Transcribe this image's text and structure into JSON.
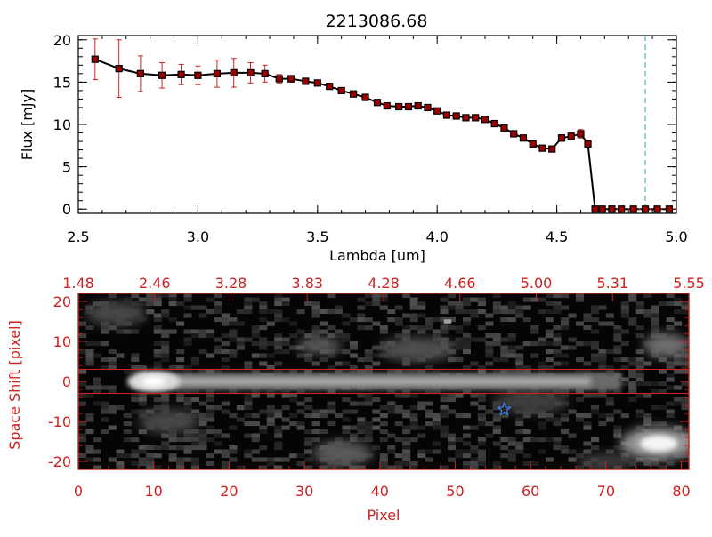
{
  "chart_data": [
    {
      "type": "line",
      "title": "2213086.68",
      "xlabel": "Lambda [um]",
      "ylabel": "Flux [mJy]",
      "xlim": [
        2.5,
        5.0
      ],
      "ylim": [
        -0.5,
        20.5
      ],
      "xticks": [
        "2.5",
        "3.0",
        "3.5",
        "4.0",
        "4.5",
        "5.0"
      ],
      "yticks": [
        "0",
        "5",
        "10",
        "15",
        "20"
      ],
      "marker_line": 4.87,
      "colors": {
        "line": "#000000",
        "marker": "#9a0000",
        "error": "#d02020",
        "marker_line": "#2aa5b8",
        "zero_line": "#d02020"
      },
      "series": [
        {
          "x": [
            2.57,
            2.67,
            2.76,
            2.85,
            2.93,
            3.0,
            3.08,
            3.15,
            3.22,
            3.28,
            3.34,
            3.39,
            3.45,
            3.5,
            3.55,
            3.6,
            3.65,
            3.7,
            3.75,
            3.79,
            3.84,
            3.88,
            3.92,
            3.96,
            4.0,
            4.04,
            4.08,
            4.12,
            4.16,
            4.2,
            4.24,
            4.28,
            4.32,
            4.36,
            4.4,
            4.44,
            4.48,
            4.52,
            4.56,
            4.6,
            4.63,
            4.66,
            4.69,
            4.73,
            4.77,
            4.82,
            4.87,
            4.92,
            4.97
          ],
          "y": [
            17.7,
            16.6,
            16.0,
            15.8,
            15.9,
            15.8,
            16.0,
            16.1,
            16.1,
            16.0,
            15.4,
            15.4,
            15.1,
            14.9,
            14.5,
            14.0,
            13.6,
            13.2,
            12.6,
            12.2,
            12.1,
            12.1,
            12.2,
            12.0,
            11.6,
            11.1,
            11.0,
            10.8,
            10.8,
            10.6,
            10.1,
            9.6,
            8.9,
            8.4,
            7.7,
            7.2,
            7.1,
            8.4,
            8.6,
            8.9,
            7.7,
            0.0,
            0.0,
            0.0,
            0.0,
            0.0,
            0.0,
            0.0,
            0.0
          ],
          "err": [
            2.4,
            3.4,
            2.1,
            1.5,
            1.2,
            1.1,
            1.6,
            1.7,
            1.2,
            1.0,
            0.5,
            0.4,
            0.3,
            0.3,
            0.3,
            0.3,
            0.3,
            0.3,
            0.3,
            0.3,
            0.3,
            0.3,
            0.3,
            0.3,
            0.3,
            0.3,
            0.3,
            0.3,
            0.3,
            0.3,
            0.3,
            0.3,
            0.3,
            0.3,
            0.3,
            0.3,
            0.3,
            0.4,
            0.4,
            0.5,
            0.4,
            0,
            0,
            0,
            0,
            0,
            0,
            0,
            0
          ]
        }
      ]
    },
    {
      "type": "heatmap",
      "xlabel": "Pixel",
      "ylabel": "Space Shift [pixel]",
      "xlim": [
        0,
        81
      ],
      "ylim": [
        -22,
        22
      ],
      "xticks": [
        "0",
        "10",
        "20",
        "30",
        "40",
        "50",
        "60",
        "70",
        "80"
      ],
      "yticks": [
        "20",
        "10",
        "0",
        "-10",
        "-20"
      ],
      "top_ticks": [
        "1.48",
        "2.46",
        "3.28",
        "3.83",
        "4.28",
        "4.66",
        "5.00",
        "5.31",
        "5.55"
      ],
      "aperture_lines": [
        3,
        -3
      ],
      "star_marker": {
        "x": 56.5,
        "y": -7
      },
      "colors": {
        "frame": "#cc2222",
        "aperture": "#cc2222",
        "star": "#3a86ff"
      }
    }
  ]
}
